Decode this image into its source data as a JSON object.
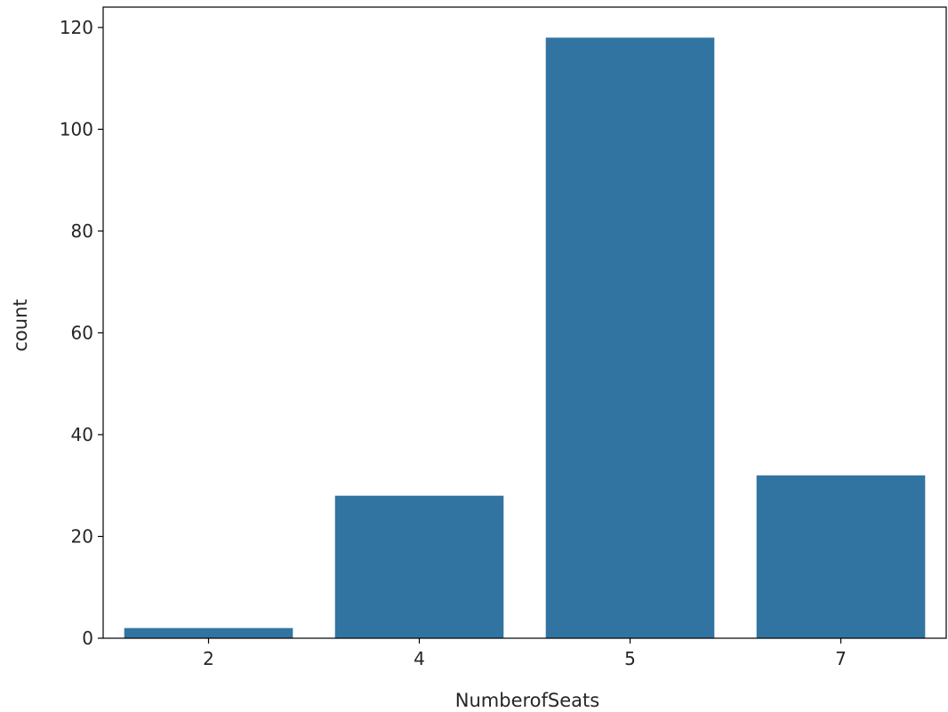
{
  "chart_data": {
    "type": "bar",
    "title": "",
    "xlabel": "NumberofSeats",
    "ylabel": "count",
    "categories": [
      "2",
      "4",
      "5",
      "7"
    ],
    "values": [
      2,
      28,
      118,
      32
    ],
    "ylim": [
      0,
      124
    ],
    "yticks": [
      0,
      20,
      40,
      60,
      80,
      100,
      120
    ],
    "grid": false,
    "legend": "none",
    "colors": {
      "bar": "#3274a1",
      "axis": "#000000",
      "text": "#262626"
    }
  }
}
